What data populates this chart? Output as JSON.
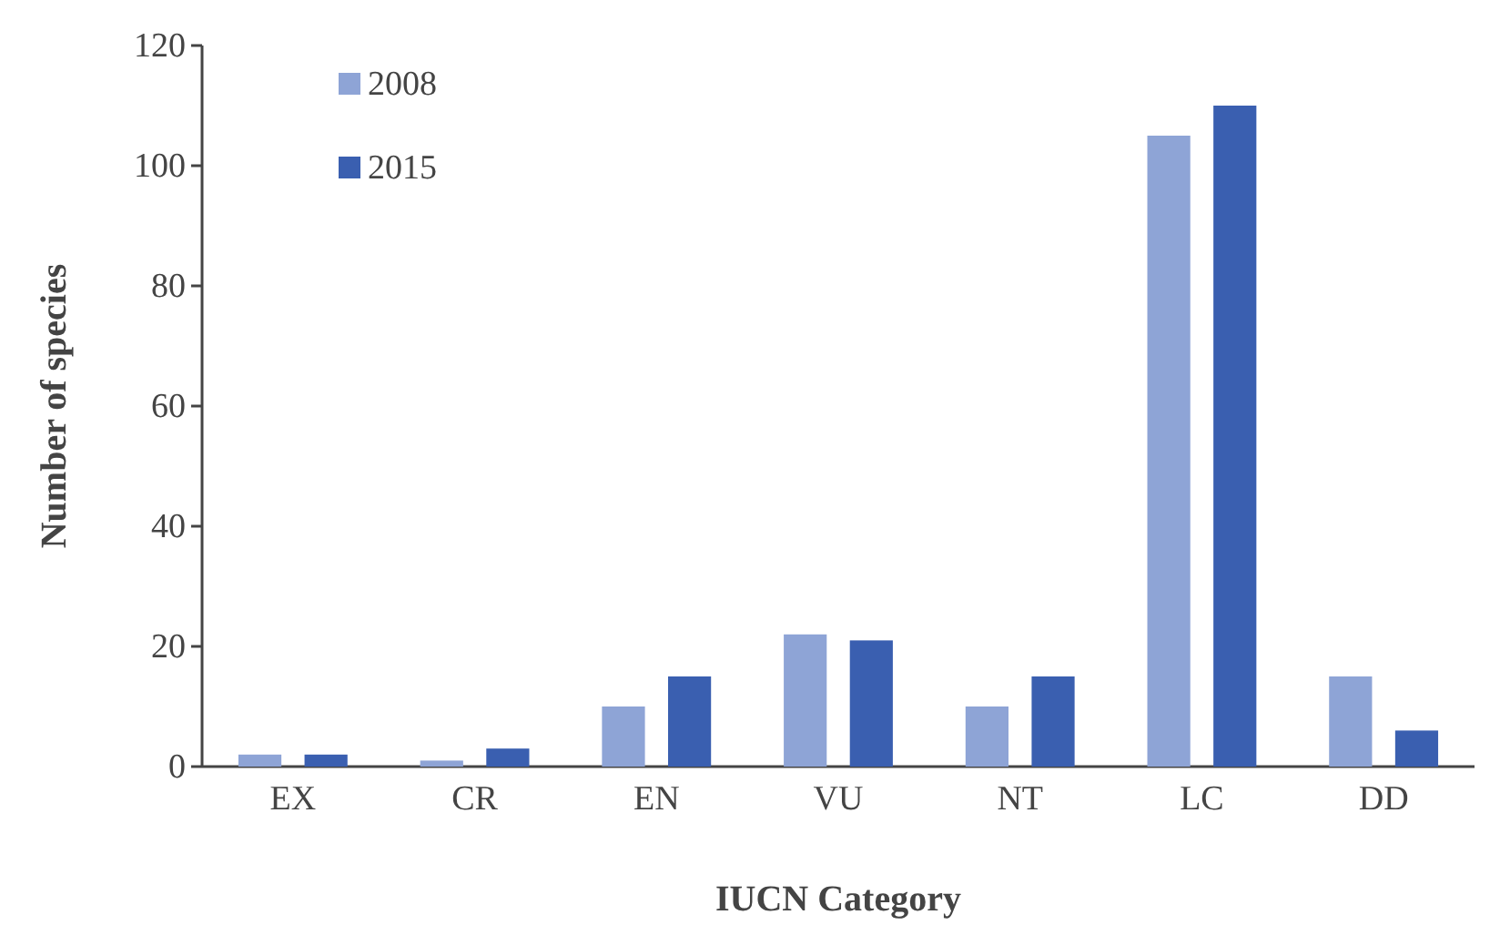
{
  "chart_data": {
    "type": "bar",
    "xlabel": "IUCN Category",
    "ylabel": "Number of species",
    "categories": [
      "EX",
      "CR",
      "EN",
      "VU",
      "NT",
      "LC",
      "DD"
    ],
    "series": [
      {
        "name": "2008",
        "color": "#8ea4d6",
        "values": [
          2,
          1,
          10,
          22,
          10,
          105,
          15
        ]
      },
      {
        "name": "2015",
        "color": "#3a5fb0",
        "values": [
          2,
          3,
          15,
          21,
          15,
          110,
          6
        ]
      }
    ],
    "ylim": [
      0,
      120
    ],
    "yticks": [
      0,
      20,
      40,
      60,
      80,
      100,
      120
    ],
    "grid": false,
    "legend": "top left"
  }
}
